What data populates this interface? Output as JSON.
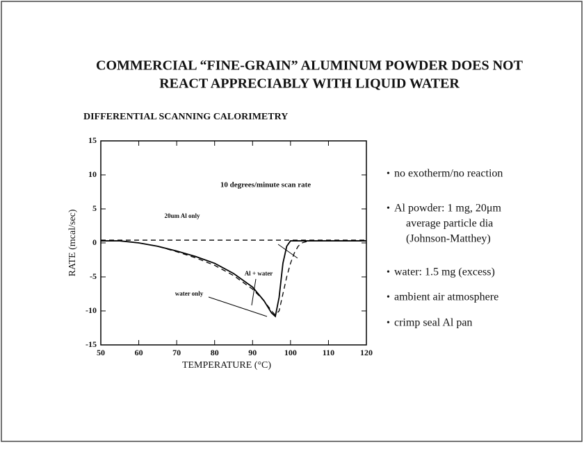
{
  "header": {
    "title_lines": [
      "COMMERCIAL “FINE-GRAIN” ALUMINUM POWDER DOES NOT",
      "REACT APPRECIABLY WITH LIQUID WATER"
    ],
    "subtitle": "DIFFERENTIAL SCANNING CALORIMETRY"
  },
  "chart_data": {
    "type": "line",
    "x_label": "TEMPERATURE (°C)",
    "y_label": "RATE (mcal/sec)",
    "annotation": "10 degrees/minute scan rate",
    "x": [
      50,
      55,
      60,
      65,
      70,
      75,
      80,
      85,
      90,
      93,
      95,
      96,
      97,
      98,
      99,
      100,
      101,
      102,
      103,
      105,
      110,
      120
    ],
    "series": [
      {
        "name": "20um Al only",
        "color": "#000000",
        "dash": true,
        "values": [
          0.4,
          0.4,
          0.4,
          0.4,
          0.4,
          0.4,
          0.4,
          0.4,
          0.4,
          0.4,
          0.4,
          0.4,
          0.4,
          0.4,
          0.4,
          0.4,
          0.4,
          0.4,
          0.4,
          0.4,
          0.4,
          0.4
        ]
      },
      {
        "name": "Al + water",
        "color": "#000000",
        "dash": true,
        "values": [
          0.3,
          0.3,
          0,
          -0.5,
          -1.3,
          -2.2,
          -3.3,
          -4.8,
          -6.8,
          -8.5,
          -10,
          -10.6,
          -10,
          -7.5,
          -5,
          -3,
          -1.5,
          -0.5,
          0,
          0.3,
          0.3,
          0.3
        ]
      },
      {
        "name": "water only",
        "color": "#000000",
        "dash": false,
        "values": [
          0.3,
          0.3,
          0,
          -0.5,
          -1.2,
          -2,
          -3,
          -4.5,
          -6.5,
          -8.5,
          -10.3,
          -10.8,
          -8,
          -3,
          -0.5,
          0.3,
          0.3,
          0.3,
          0.3,
          0.3,
          0.3,
          0.3
        ]
      }
    ],
    "xlim": [
      50,
      120
    ],
    "xticks": [
      50,
      60,
      70,
      80,
      90,
      100,
      110,
      120
    ],
    "ylim": [
      -15,
      15
    ],
    "yticks": [
      -15,
      -10,
      -5,
      0,
      5,
      10,
      15
    ],
    "grid": false
  },
  "bullets": [
    [
      "no exotherm/no reaction"
    ],
    [
      "Al powder: 1 mg, 20μm",
      "average particle dia",
      "(Johnson-Matthey)"
    ],
    [
      "water: 1.5 mg (excess)"
    ],
    [
      "ambient air atmosphere"
    ],
    [
      "crimp seal  Al pan"
    ]
  ]
}
